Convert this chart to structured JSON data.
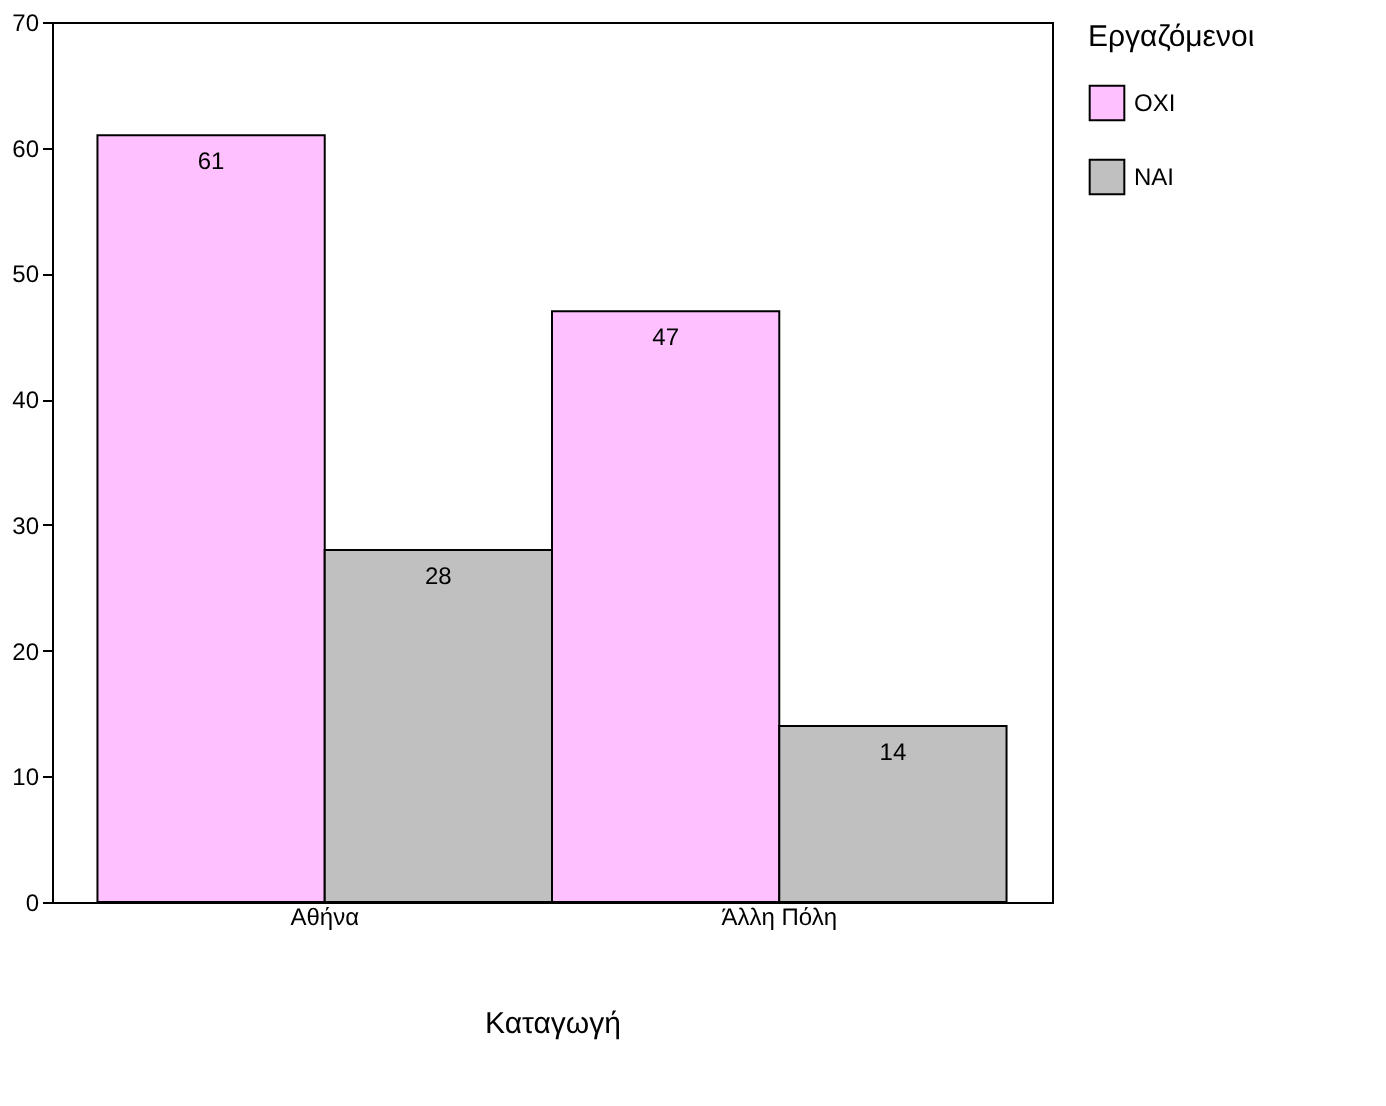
{
  "chart_data": {
    "type": "bar",
    "xlabel": "Καταγωγή",
    "legend_title": "Εργαζόμενοι",
    "categories": [
      "Αθήνα",
      "Άλλη Πόλη"
    ],
    "series": [
      {
        "name": "ΟΧΙ",
        "color": "#ffc0ff",
        "values": [
          61,
          47
        ]
      },
      {
        "name": "ΝΑΙ",
        "color": "#c0c0c0",
        "values": [
          28,
          14
        ]
      }
    ],
    "ylim": [
      0,
      70
    ],
    "yticks": [
      0,
      10,
      20,
      30,
      40,
      50,
      60,
      70
    ],
    "data_labels": true,
    "legend": "right",
    "grid": false
  }
}
